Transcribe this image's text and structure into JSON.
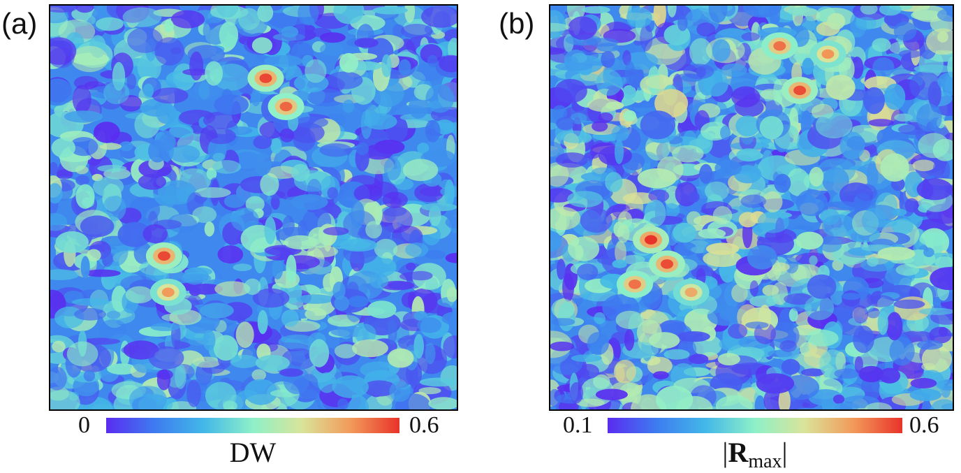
{
  "colors": {
    "colormap": [
      "#5a2cf0",
      "#3d7cf0",
      "#43b8e8",
      "#8ef0c8",
      "#d9e49a",
      "#f29a5a",
      "#e8332a"
    ]
  },
  "chart_data": [
    {
      "type": "heatmap",
      "panel_label": "(a)",
      "colorbar": {
        "min": 0,
        "max": 0.6,
        "min_label": "0",
        "max_label": "0.6",
        "label": "DW"
      },
      "hotspots": [
        {
          "x": 0.53,
          "y": 0.18,
          "value": 0.58
        },
        {
          "x": 0.58,
          "y": 0.25,
          "value": 0.55
        },
        {
          "x": 0.28,
          "y": 0.62,
          "value": 0.58
        },
        {
          "x": 0.29,
          "y": 0.71,
          "value": 0.5
        }
      ]
    },
    {
      "type": "heatmap",
      "panel_label": "(b)",
      "colorbar": {
        "min": 0.1,
        "max": 0.6,
        "min_label": "0.1",
        "max_label": "0.6",
        "label_main": "|",
        "label_bold": "R",
        "label_sub": "max",
        "label_end": "|"
      },
      "hotspots": [
        {
          "x": 0.57,
          "y": 0.1,
          "value": 0.55
        },
        {
          "x": 0.62,
          "y": 0.21,
          "value": 0.58
        },
        {
          "x": 0.69,
          "y": 0.12,
          "value": 0.52
        },
        {
          "x": 0.25,
          "y": 0.58,
          "value": 0.6
        },
        {
          "x": 0.29,
          "y": 0.64,
          "value": 0.58
        },
        {
          "x": 0.21,
          "y": 0.69,
          "value": 0.55
        },
        {
          "x": 0.35,
          "y": 0.71,
          "value": 0.5
        }
      ]
    }
  ]
}
